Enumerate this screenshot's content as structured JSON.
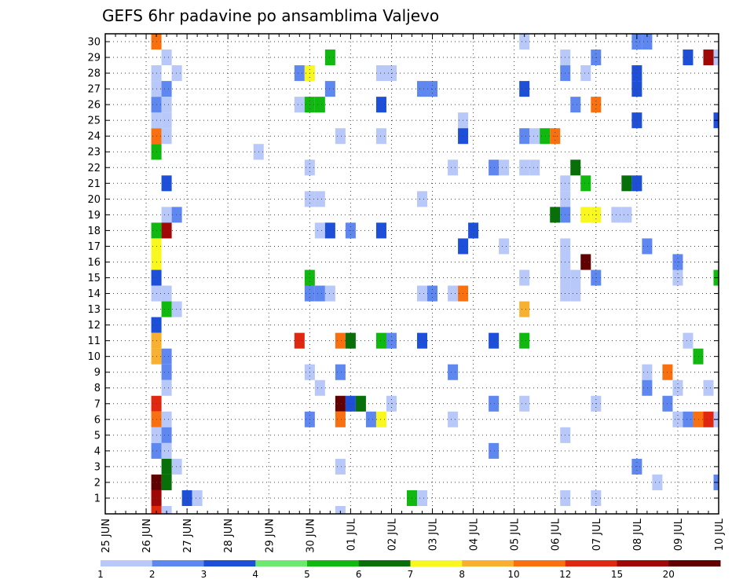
{
  "chart_data": {
    "type": "heatmap",
    "title": "GEFS 6hr padavine po ansamblima Valjevo",
    "xlabel": "",
    "ylabel": "",
    "y_ticks": [
      1,
      2,
      3,
      4,
      5,
      6,
      7,
      8,
      9,
      10,
      11,
      12,
      13,
      14,
      15,
      16,
      17,
      18,
      19,
      20,
      21,
      22,
      23,
      24,
      25,
      26,
      27,
      28,
      29,
      30
    ],
    "x_ticks": [
      "25 JUN",
      "26 JUN",
      "27 JUN",
      "28 JUN",
      "29 JUN",
      "30 JUN",
      "01 JUL",
      "02 JUL",
      "03 JUL",
      "04 JUL",
      "05 JUL",
      "06 JUL",
      "07 JUL",
      "08 JUL",
      "09 JUL",
      "10 JUL"
    ],
    "x_unit": "6-hour step (4 per day), step 0 = 25 JUN",
    "grid": true,
    "legend": {
      "placement": "bottom",
      "labels": [
        "1",
        "2",
        "3",
        "4",
        "5",
        "6",
        "7",
        "8",
        "10",
        "12",
        "15",
        "20"
      ],
      "colors": [
        "#b8c8f8",
        "#5f87f0",
        "#1d4fd8",
        "#6ee86e",
        "#10b810",
        "#087008",
        "#f8f820",
        "#f8b030",
        "#f87010",
        "#e02810",
        "#a00808",
        "#600000"
      ]
    },
    "cells": [
      {
        "x": 5,
        "y": 30,
        "v": 10
      },
      {
        "x": 5,
        "y": 24,
        "v": 10
      },
      {
        "x": 5,
        "y": 25,
        "v": 1
      },
      {
        "x": 5,
        "y": 26,
        "v": 2
      },
      {
        "x": 5,
        "y": 27,
        "v": 1
      },
      {
        "x": 5,
        "y": 28,
        "v": 1
      },
      {
        "x": 5,
        "y": 23,
        "v": 5
      },
      {
        "x": 5,
        "y": 18,
        "v": 5
      },
      {
        "x": 5,
        "y": 17,
        "v": 7
      },
      {
        "x": 5,
        "y": 16,
        "v": 7
      },
      {
        "x": 5,
        "y": 15,
        "v": 3
      },
      {
        "x": 5,
        "y": 14,
        "v": 1
      },
      {
        "x": 5,
        "y": 12,
        "v": 3
      },
      {
        "x": 5,
        "y": 11,
        "v": 8
      },
      {
        "x": 5,
        "y": 10,
        "v": 8
      },
      {
        "x": 5,
        "y": 7,
        "v": 12
      },
      {
        "x": 5,
        "y": 6,
        "v": 10
      },
      {
        "x": 5,
        "y": 5,
        "v": 1
      },
      {
        "x": 5,
        "y": 4,
        "v": 2
      },
      {
        "x": 5,
        "y": 2,
        "v": 20
      },
      {
        "x": 5,
        "y": 1,
        "v": 15
      },
      {
        "x": 5,
        "y": 0,
        "v": 12
      },
      {
        "x": 6,
        "y": 29,
        "v": 1
      },
      {
        "x": 6,
        "y": 27,
        "v": 2
      },
      {
        "x": 6,
        "y": 26,
        "v": 1
      },
      {
        "x": 6,
        "y": 25,
        "v": 1
      },
      {
        "x": 6,
        "y": 24,
        "v": 1
      },
      {
        "x": 6,
        "y": 21,
        "v": 3
      },
      {
        "x": 6,
        "y": 19,
        "v": 1
      },
      {
        "x": 6,
        "y": 18,
        "v": 15
      },
      {
        "x": 6,
        "y": 14,
        "v": 1
      },
      {
        "x": 6,
        "y": 13,
        "v": 5
      },
      {
        "x": 6,
        "y": 10,
        "v": 2
      },
      {
        "x": 6,
        "y": 9,
        "v": 2
      },
      {
        "x": 6,
        "y": 8,
        "v": 1
      },
      {
        "x": 6,
        "y": 6,
        "v": 1
      },
      {
        "x": 6,
        "y": 5,
        "v": 2
      },
      {
        "x": 6,
        "y": 4,
        "v": 1
      },
      {
        "x": 6,
        "y": 3,
        "v": 6
      },
      {
        "x": 6,
        "y": 2,
        "v": 6
      },
      {
        "x": 6,
        "y": 0,
        "v": 1
      },
      {
        "x": 7,
        "y": 28,
        "v": 1
      },
      {
        "x": 7,
        "y": 19,
        "v": 2
      },
      {
        "x": 7,
        "y": 13,
        "v": 1
      },
      {
        "x": 7,
        "y": 3,
        "v": 1
      },
      {
        "x": 8,
        "y": 1,
        "v": 3
      },
      {
        "x": 9,
        "y": 1,
        "v": 1
      },
      {
        "x": 15,
        "y": 23,
        "v": 1
      },
      {
        "x": 19,
        "y": 28,
        "v": 2
      },
      {
        "x": 19,
        "y": 26,
        "v": 1
      },
      {
        "x": 19,
        "y": 11,
        "v": 12
      },
      {
        "x": 20,
        "y": 28,
        "v": 7
      },
      {
        "x": 20,
        "y": 26,
        "v": 5
      },
      {
        "x": 20,
        "y": 22,
        "v": 1
      },
      {
        "x": 20,
        "y": 20,
        "v": 1
      },
      {
        "x": 20,
        "y": 15,
        "v": 5
      },
      {
        "x": 20,
        "y": 14,
        "v": 2
      },
      {
        "x": 20,
        "y": 9,
        "v": 1
      },
      {
        "x": 20,
        "y": 6,
        "v": 2
      },
      {
        "x": 21,
        "y": 26,
        "v": 5
      },
      {
        "x": 21,
        "y": 20,
        "v": 1
      },
      {
        "x": 21,
        "y": 18,
        "v": 1
      },
      {
        "x": 21,
        "y": 14,
        "v": 2
      },
      {
        "x": 21,
        "y": 8,
        "v": 1
      },
      {
        "x": 22,
        "y": 29,
        "v": 5
      },
      {
        "x": 22,
        "y": 27,
        "v": 2
      },
      {
        "x": 22,
        "y": 18,
        "v": 3
      },
      {
        "x": 22,
        "y": 14,
        "v": 1
      },
      {
        "x": 23,
        "y": 24,
        "v": 1
      },
      {
        "x": 23,
        "y": 11,
        "v": 10
      },
      {
        "x": 23,
        "y": 9,
        "v": 2
      },
      {
        "x": 23,
        "y": 7,
        "v": 20
      },
      {
        "x": 23,
        "y": 6,
        "v": 10
      },
      {
        "x": 23,
        "y": 3,
        "v": 1
      },
      {
        "x": 23,
        "y": 0,
        "v": 1
      },
      {
        "x": 24,
        "y": 18,
        "v": 2
      },
      {
        "x": 24,
        "y": 11,
        "v": 6
      },
      {
        "x": 24,
        "y": 7,
        "v": 3
      },
      {
        "x": 25,
        "y": 7,
        "v": 6
      },
      {
        "x": 26,
        "y": 6,
        "v": 2
      },
      {
        "x": 27,
        "y": 28,
        "v": 1
      },
      {
        "x": 27,
        "y": 26,
        "v": 3
      },
      {
        "x": 27,
        "y": 24,
        "v": 1
      },
      {
        "x": 27,
        "y": 18,
        "v": 3
      },
      {
        "x": 27,
        "y": 11,
        "v": 5
      },
      {
        "x": 27,
        "y": 6,
        "v": 7
      },
      {
        "x": 28,
        "y": 28,
        "v": 1
      },
      {
        "x": 28,
        "y": 11,
        "v": 2
      },
      {
        "x": 28,
        "y": 7,
        "v": 1
      },
      {
        "x": 30,
        "y": 1,
        "v": 5
      },
      {
        "x": 31,
        "y": 27,
        "v": 2
      },
      {
        "x": 31,
        "y": 20,
        "v": 1
      },
      {
        "x": 31,
        "y": 14,
        "v": 1
      },
      {
        "x": 31,
        "y": 11,
        "v": 3
      },
      {
        "x": 31,
        "y": 1,
        "v": 1
      },
      {
        "x": 32,
        "y": 27,
        "v": 2
      },
      {
        "x": 32,
        "y": 14,
        "v": 2
      },
      {
        "x": 34,
        "y": 22,
        "v": 1
      },
      {
        "x": 34,
        "y": 14,
        "v": 1
      },
      {
        "x": 34,
        "y": 9,
        "v": 2
      },
      {
        "x": 34,
        "y": 6,
        "v": 1
      },
      {
        "x": 35,
        "y": 25,
        "v": 1
      },
      {
        "x": 35,
        "y": 24,
        "v": 3
      },
      {
        "x": 35,
        "y": 17,
        "v": 3
      },
      {
        "x": 35,
        "y": 14,
        "v": 10
      },
      {
        "x": 36,
        "y": 18,
        "v": 3
      },
      {
        "x": 38,
        "y": 22,
        "v": 2
      },
      {
        "x": 38,
        "y": 11,
        "v": 3
      },
      {
        "x": 38,
        "y": 7,
        "v": 2
      },
      {
        "x": 38,
        "y": 4,
        "v": 2
      },
      {
        "x": 39,
        "y": 22,
        "v": 1
      },
      {
        "x": 39,
        "y": 17,
        "v": 1
      },
      {
        "x": 41,
        "y": 30,
        "v": 1
      },
      {
        "x": 41,
        "y": 27,
        "v": 3
      },
      {
        "x": 41,
        "y": 24,
        "v": 2
      },
      {
        "x": 41,
        "y": 22,
        "v": 1
      },
      {
        "x": 41,
        "y": 15,
        "v": 1
      },
      {
        "x": 41,
        "y": 13,
        "v": 8
      },
      {
        "x": 41,
        "y": 11,
        "v": 5
      },
      {
        "x": 41,
        "y": 7,
        "v": 1
      },
      {
        "x": 42,
        "y": 24,
        "v": 1
      },
      {
        "x": 42,
        "y": 22,
        "v": 1
      },
      {
        "x": 43,
        "y": 24,
        "v": 5
      },
      {
        "x": 44,
        "y": 24,
        "v": 10
      },
      {
        "x": 44,
        "y": 19,
        "v": 6
      },
      {
        "x": 45,
        "y": 29,
        "v": 1
      },
      {
        "x": 45,
        "y": 28,
        "v": 2
      },
      {
        "x": 45,
        "y": 21,
        "v": 1
      },
      {
        "x": 45,
        "y": 20,
        "v": 1
      },
      {
        "x": 45,
        "y": 19,
        "v": 2
      },
      {
        "x": 45,
        "y": 17,
        "v": 1
      },
      {
        "x": 45,
        "y": 16,
        "v": 1
      },
      {
        "x": 45,
        "y": 15,
        "v": 1
      },
      {
        "x": 45,
        "y": 14,
        "v": 1
      },
      {
        "x": 45,
        "y": 5,
        "v": 1
      },
      {
        "x": 45,
        "y": 1,
        "v": 1
      },
      {
        "x": 46,
        "y": 26,
        "v": 2
      },
      {
        "x": 46,
        "y": 22,
        "v": 6
      },
      {
        "x": 46,
        "y": 15,
        "v": 1
      },
      {
        "x": 46,
        "y": 14,
        "v": 1
      },
      {
        "x": 47,
        "y": 28,
        "v": 1
      },
      {
        "x": 47,
        "y": 21,
        "v": 5
      },
      {
        "x": 47,
        "y": 19,
        "v": 7
      },
      {
        "x": 47,
        "y": 16,
        "v": 20
      },
      {
        "x": 48,
        "y": 29,
        "v": 2
      },
      {
        "x": 48,
        "y": 26,
        "v": 10
      },
      {
        "x": 48,
        "y": 19,
        "v": 7
      },
      {
        "x": 48,
        "y": 15,
        "v": 2
      },
      {
        "x": 48,
        "y": 7,
        "v": 1
      },
      {
        "x": 48,
        "y": 1,
        "v": 1
      },
      {
        "x": 50,
        "y": 19,
        "v": 1
      },
      {
        "x": 51,
        "y": 19,
        "v": 1
      },
      {
        "x": 51,
        "y": 21,
        "v": 6
      },
      {
        "x": 52,
        "y": 30,
        "v": 2
      },
      {
        "x": 52,
        "y": 28,
        "v": 3
      },
      {
        "x": 52,
        "y": 27,
        "v": 3
      },
      {
        "x": 52,
        "y": 25,
        "v": 3
      },
      {
        "x": 52,
        "y": 21,
        "v": 3
      },
      {
        "x": 52,
        "y": 3,
        "v": 2
      },
      {
        "x": 53,
        "y": 30,
        "v": 2
      },
      {
        "x": 53,
        "y": 17,
        "v": 2
      },
      {
        "x": 53,
        "y": 9,
        "v": 1
      },
      {
        "x": 53,
        "y": 8,
        "v": 2
      },
      {
        "x": 54,
        "y": 2,
        "v": 1
      },
      {
        "x": 55,
        "y": 9,
        "v": 10
      },
      {
        "x": 55,
        "y": 7,
        "v": 2
      },
      {
        "x": 56,
        "y": 16,
        "v": 2
      },
      {
        "x": 56,
        "y": 15,
        "v": 1
      },
      {
        "x": 56,
        "y": 8,
        "v": 1
      },
      {
        "x": 56,
        "y": 6,
        "v": 1
      },
      {
        "x": 57,
        "y": 29,
        "v": 3
      },
      {
        "x": 57,
        "y": 11,
        "v": 1
      },
      {
        "x": 57,
        "y": 6,
        "v": 2
      },
      {
        "x": 58,
        "y": 10,
        "v": 5
      },
      {
        "x": 58,
        "y": 6,
        "v": 10
      },
      {
        "x": 59,
        "y": 29,
        "v": 15
      },
      {
        "x": 59,
        "y": 8,
        "v": 1
      },
      {
        "x": 59,
        "y": 6,
        "v": 12
      },
      {
        "x": 60,
        "y": 29,
        "v": 1
      },
      {
        "x": 60,
        "y": 25,
        "v": 3
      },
      {
        "x": 60,
        "y": 15,
        "v": 5
      },
      {
        "x": 60,
        "y": 6,
        "v": 1
      },
      {
        "x": 60,
        "y": 2,
        "v": 2
      }
    ]
  }
}
